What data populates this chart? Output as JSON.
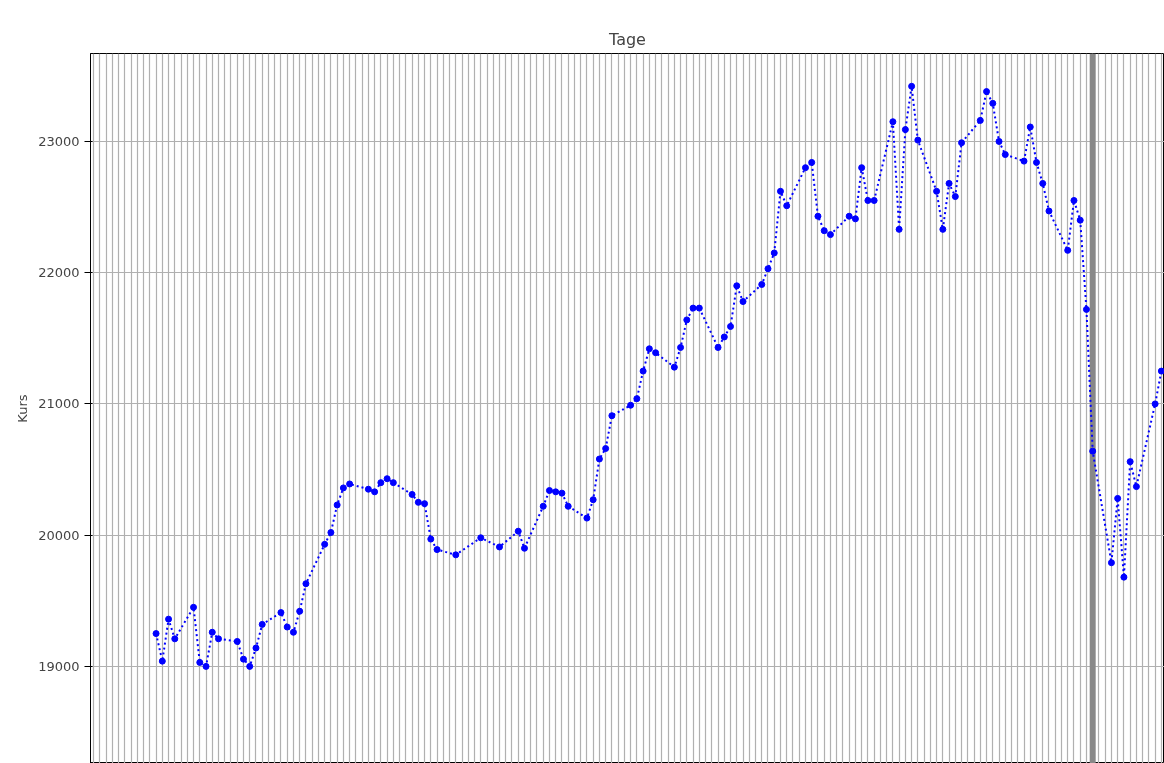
{
  "chart_data": {
    "type": "line",
    "title": "Tage",
    "ylabel": "Kurs",
    "categories": [
      null,
      null,
      null,
      null,
      null,
      null,
      null,
      null,
      null,
      null,
      null,
      null,
      null,
      null,
      null,
      null,
      null,
      null,
      null,
      null,
      null,
      null,
      null,
      null,
      null,
      null,
      null,
      null,
      null,
      null,
      null,
      null,
      null,
      null,
      null,
      null,
      null,
      null,
      null,
      null,
      null,
      null,
      null,
      null,
      null,
      null,
      null,
      null,
      null,
      null,
      null,
      null,
      null,
      null,
      null,
      null,
      null,
      null,
      null,
      null,
      null,
      null,
      null,
      null,
      null,
      null,
      null,
      null,
      null,
      null,
      null,
      null,
      null,
      null,
      null,
      null,
      null,
      null,
      null,
      null,
      null,
      null,
      null,
      null,
      null,
      null,
      null,
      null,
      null,
      null,
      null,
      null,
      null,
      null,
      null,
      null,
      null,
      null,
      null,
      null,
      null,
      null,
      null,
      null,
      null,
      null,
      null,
      null,
      null,
      null,
      null,
      null,
      null,
      null,
      null,
      null,
      null,
      null,
      null,
      null,
      null,
      null,
      null,
      null,
      null,
      null,
      null,
      null,
      null,
      null,
      null,
      null,
      null,
      null,
      null,
      null,
      null,
      null,
      null,
      null,
      null,
      null,
      null,
      null,
      null,
      null,
      null,
      null,
      null,
      null,
      null,
      null,
      null,
      null,
      null,
      null,
      null,
      null,
      null,
      null,
      null,
      null,
      null,
      null,
      null,
      null,
      null,
      null,
      null,
      null,
      null,
      null
    ],
    "series": [
      {
        "color": "#0000ff",
        "values": [
          null,
          null,
          null,
          null,
          null,
          null,
          null,
          null,
          null,
          null,
          19250,
          19040,
          19360,
          19210,
          null,
          null,
          19450,
          19030,
          19000,
          19260,
          19210,
          null,
          null,
          19190,
          19055,
          19000,
          19140,
          19320,
          null,
          null,
          19410,
          19300,
          19260,
          19420,
          19630,
          null,
          null,
          19930,
          20020,
          20230,
          20360,
          20390,
          null,
          null,
          20350,
          20330,
          20400,
          20430,
          20400,
          null,
          null,
          20310,
          20250,
          20240,
          19970,
          19890,
          null,
          null,
          19850,
          null,
          null,
          null,
          19980,
          null,
          null,
          19910,
          null,
          null,
          20030,
          19900,
          null,
          null,
          20220,
          20340,
          20330,
          20320,
          20220,
          null,
          null,
          20130,
          20270,
          20580,
          20660,
          20910,
          null,
          null,
          20990,
          21040,
          21250,
          21420,
          21390,
          null,
          null,
          21280,
          21430,
          21640,
          21730,
          21730,
          null,
          null,
          21430,
          21510,
          21590,
          21900,
          21780,
          null,
          null,
          21910,
          22030,
          22150,
          22620,
          22510,
          null,
          null,
          22800,
          22840,
          22430,
          22320,
          22290,
          null,
          null,
          22430,
          22410,
          22800,
          22550,
          22550,
          null,
          null,
          23150,
          22330,
          23090,
          23420,
          23010,
          null,
          null,
          22620,
          22330,
          22680,
          22580,
          22990,
          null,
          null,
          23160,
          23380,
          23290,
          23000,
          22900,
          null,
          null,
          22850,
          23110,
          22840,
          22680,
          22470,
          null,
          null,
          22170,
          22550,
          22400,
          21720,
          20640,
          null,
          null,
          19790,
          20280,
          19680,
          20560,
          20370,
          null,
          null,
          21000,
          21250
        ]
      }
    ],
    "ylim": [
      18260,
      23670
    ],
    "yticks": [
      19000,
      20000,
      21000,
      22000,
      23000
    ],
    "grid": true,
    "marker": "circle",
    "line_style": "dotted",
    "tick_labels": "y"
  }
}
